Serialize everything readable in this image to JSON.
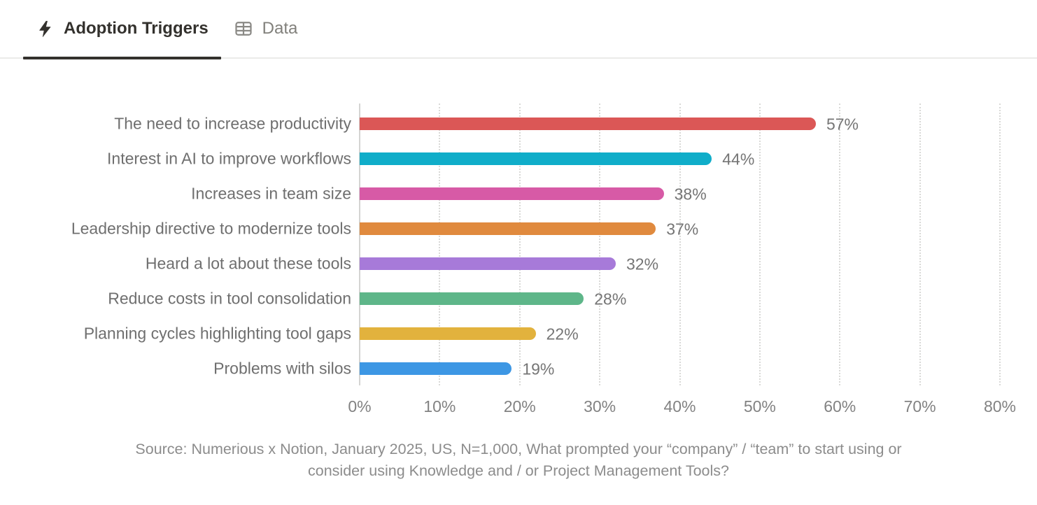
{
  "tabs": [
    {
      "label": "Adoption Triggers",
      "icon": "lightning-icon",
      "active": true
    },
    {
      "label": "Data",
      "icon": "table-icon",
      "active": false
    }
  ],
  "chart_data": {
    "type": "bar",
    "orientation": "horizontal",
    "title": "",
    "xlabel": "",
    "ylabel": "",
    "xlim": [
      0,
      80
    ],
    "grid": "dotted-vertical",
    "legend": "none",
    "categories": [
      "The need to increase productivity",
      "Interest in AI to improve workflows",
      "Increases in team size",
      "Leadership directive to modernize tools",
      "Heard a lot about these tools",
      "Reduce costs in tool consolidation",
      "Planning cycles highlighting tool gaps",
      "Problems with silos"
    ],
    "values": [
      57,
      44,
      38,
      37,
      32,
      28,
      22,
      19
    ],
    "value_labels": [
      "57%",
      "44%",
      "38%",
      "37%",
      "32%",
      "28%",
      "22%",
      "19%"
    ],
    "bar_colors": [
      "#db5756",
      "#10adc9",
      "#d75aa6",
      "#e08a3e",
      "#a77ad9",
      "#5eb689",
      "#e2b23d",
      "#3d97e4"
    ],
    "x_ticks": [
      "0%",
      "10%",
      "20%",
      "30%",
      "40%",
      "50%",
      "60%",
      "70%",
      "80%"
    ],
    "x_tick_values": [
      0,
      10,
      20,
      30,
      40,
      50,
      60,
      70,
      80
    ]
  },
  "colors": {
    "active_tab": "#33312d",
    "inactive_tab": "#81807b",
    "tab_border": "#ebebe9",
    "gridline": "#d9d9d7",
    "label_text": "#6f6f6f",
    "source_text": "#8c8c8c"
  },
  "source": {
    "lines": [
      "Source: Numerious x Notion, January 2025, US, N=1,000, What prompted your “company” / “team” to start using or",
      "consider using Knowledge and / or Project Management Tools?"
    ]
  }
}
